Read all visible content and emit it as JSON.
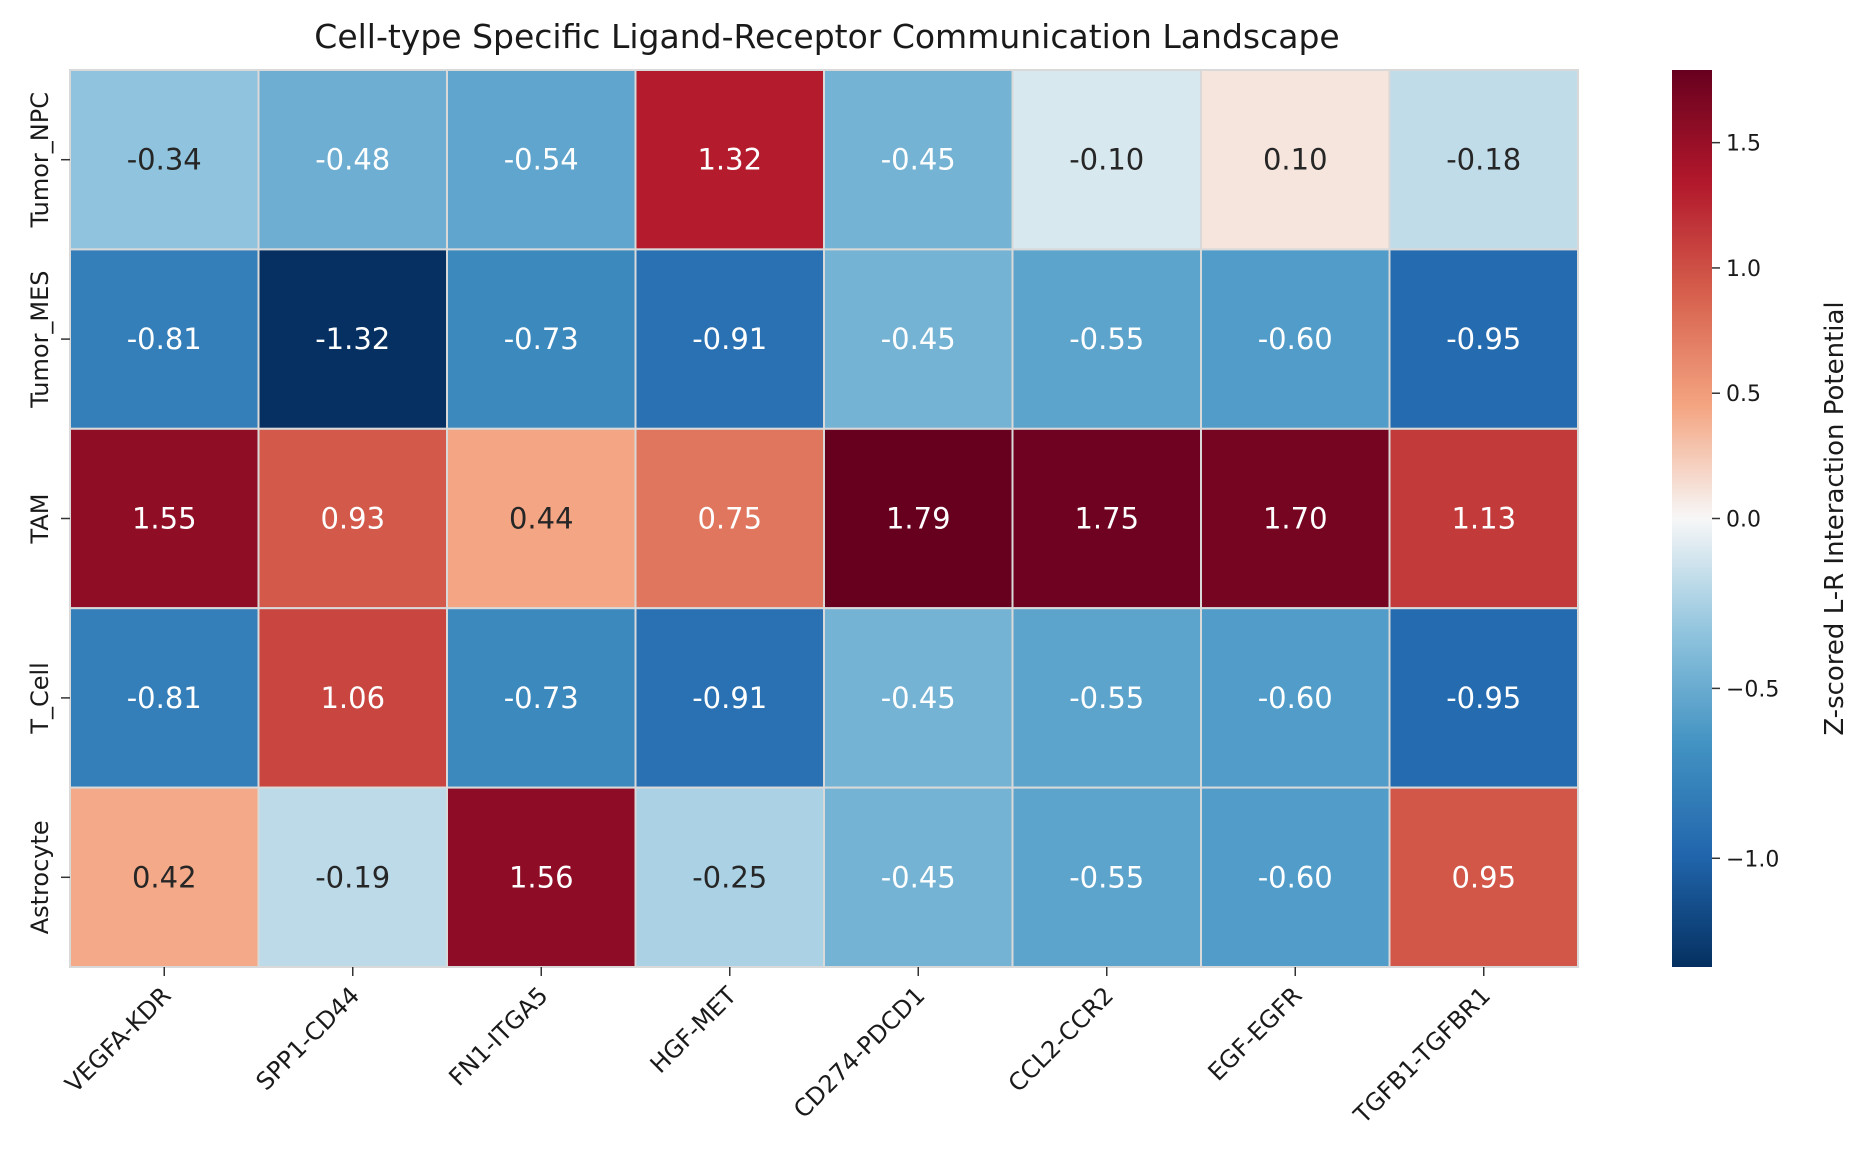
{
  "chart_data": {
    "type": "heatmap",
    "title": "Cell-type Specific Ligand-Receptor Communication Landscape",
    "xlabel": "",
    "ylabel": "",
    "x_categories": [
      "VEGFA-KDR",
      "SPP1-CD44",
      "FN1-ITGA5",
      "HGF-MET",
      "CD274-PDCD1",
      "CCL2-CCR2",
      "EGF-EGFR",
      "TGFB1-TGFBR1"
    ],
    "y_categories": [
      "Tumor_NPC",
      "Tumor_MES",
      "TAM",
      "T_Cell",
      "Astrocyte"
    ],
    "values": [
      [
        -0.34,
        -0.48,
        -0.54,
        1.32,
        -0.45,
        -0.1,
        0.1,
        -0.18
      ],
      [
        -0.81,
        -1.32,
        -0.73,
        -0.91,
        -0.45,
        -0.55,
        -0.6,
        -0.95
      ],
      [
        1.55,
        0.93,
        0.44,
        0.75,
        1.79,
        1.75,
        1.7,
        1.13
      ],
      [
        -0.81,
        1.06,
        -0.73,
        -0.91,
        -0.45,
        -0.55,
        -0.6,
        -0.95
      ],
      [
        0.42,
        -0.19,
        1.56,
        -0.25,
        -0.45,
        -0.55,
        -0.6,
        0.95
      ]
    ],
    "value_format": "0.00",
    "colormap": "RdBu_r",
    "vmin": -1.32,
    "vmax": 1.79,
    "vcenter": 0.0,
    "colorbar": {
      "label": "Z-scored L-R Interaction Potential",
      "ticks": [
        -1.0,
        -0.5,
        0.0,
        0.5,
        1.0,
        1.5
      ],
      "tick_labels": [
        "−1.0",
        "−0.5",
        "0.0",
        "0.5",
        "1.0",
        "1.5"
      ]
    },
    "grid": true,
    "legend": "colorbar-right"
  }
}
